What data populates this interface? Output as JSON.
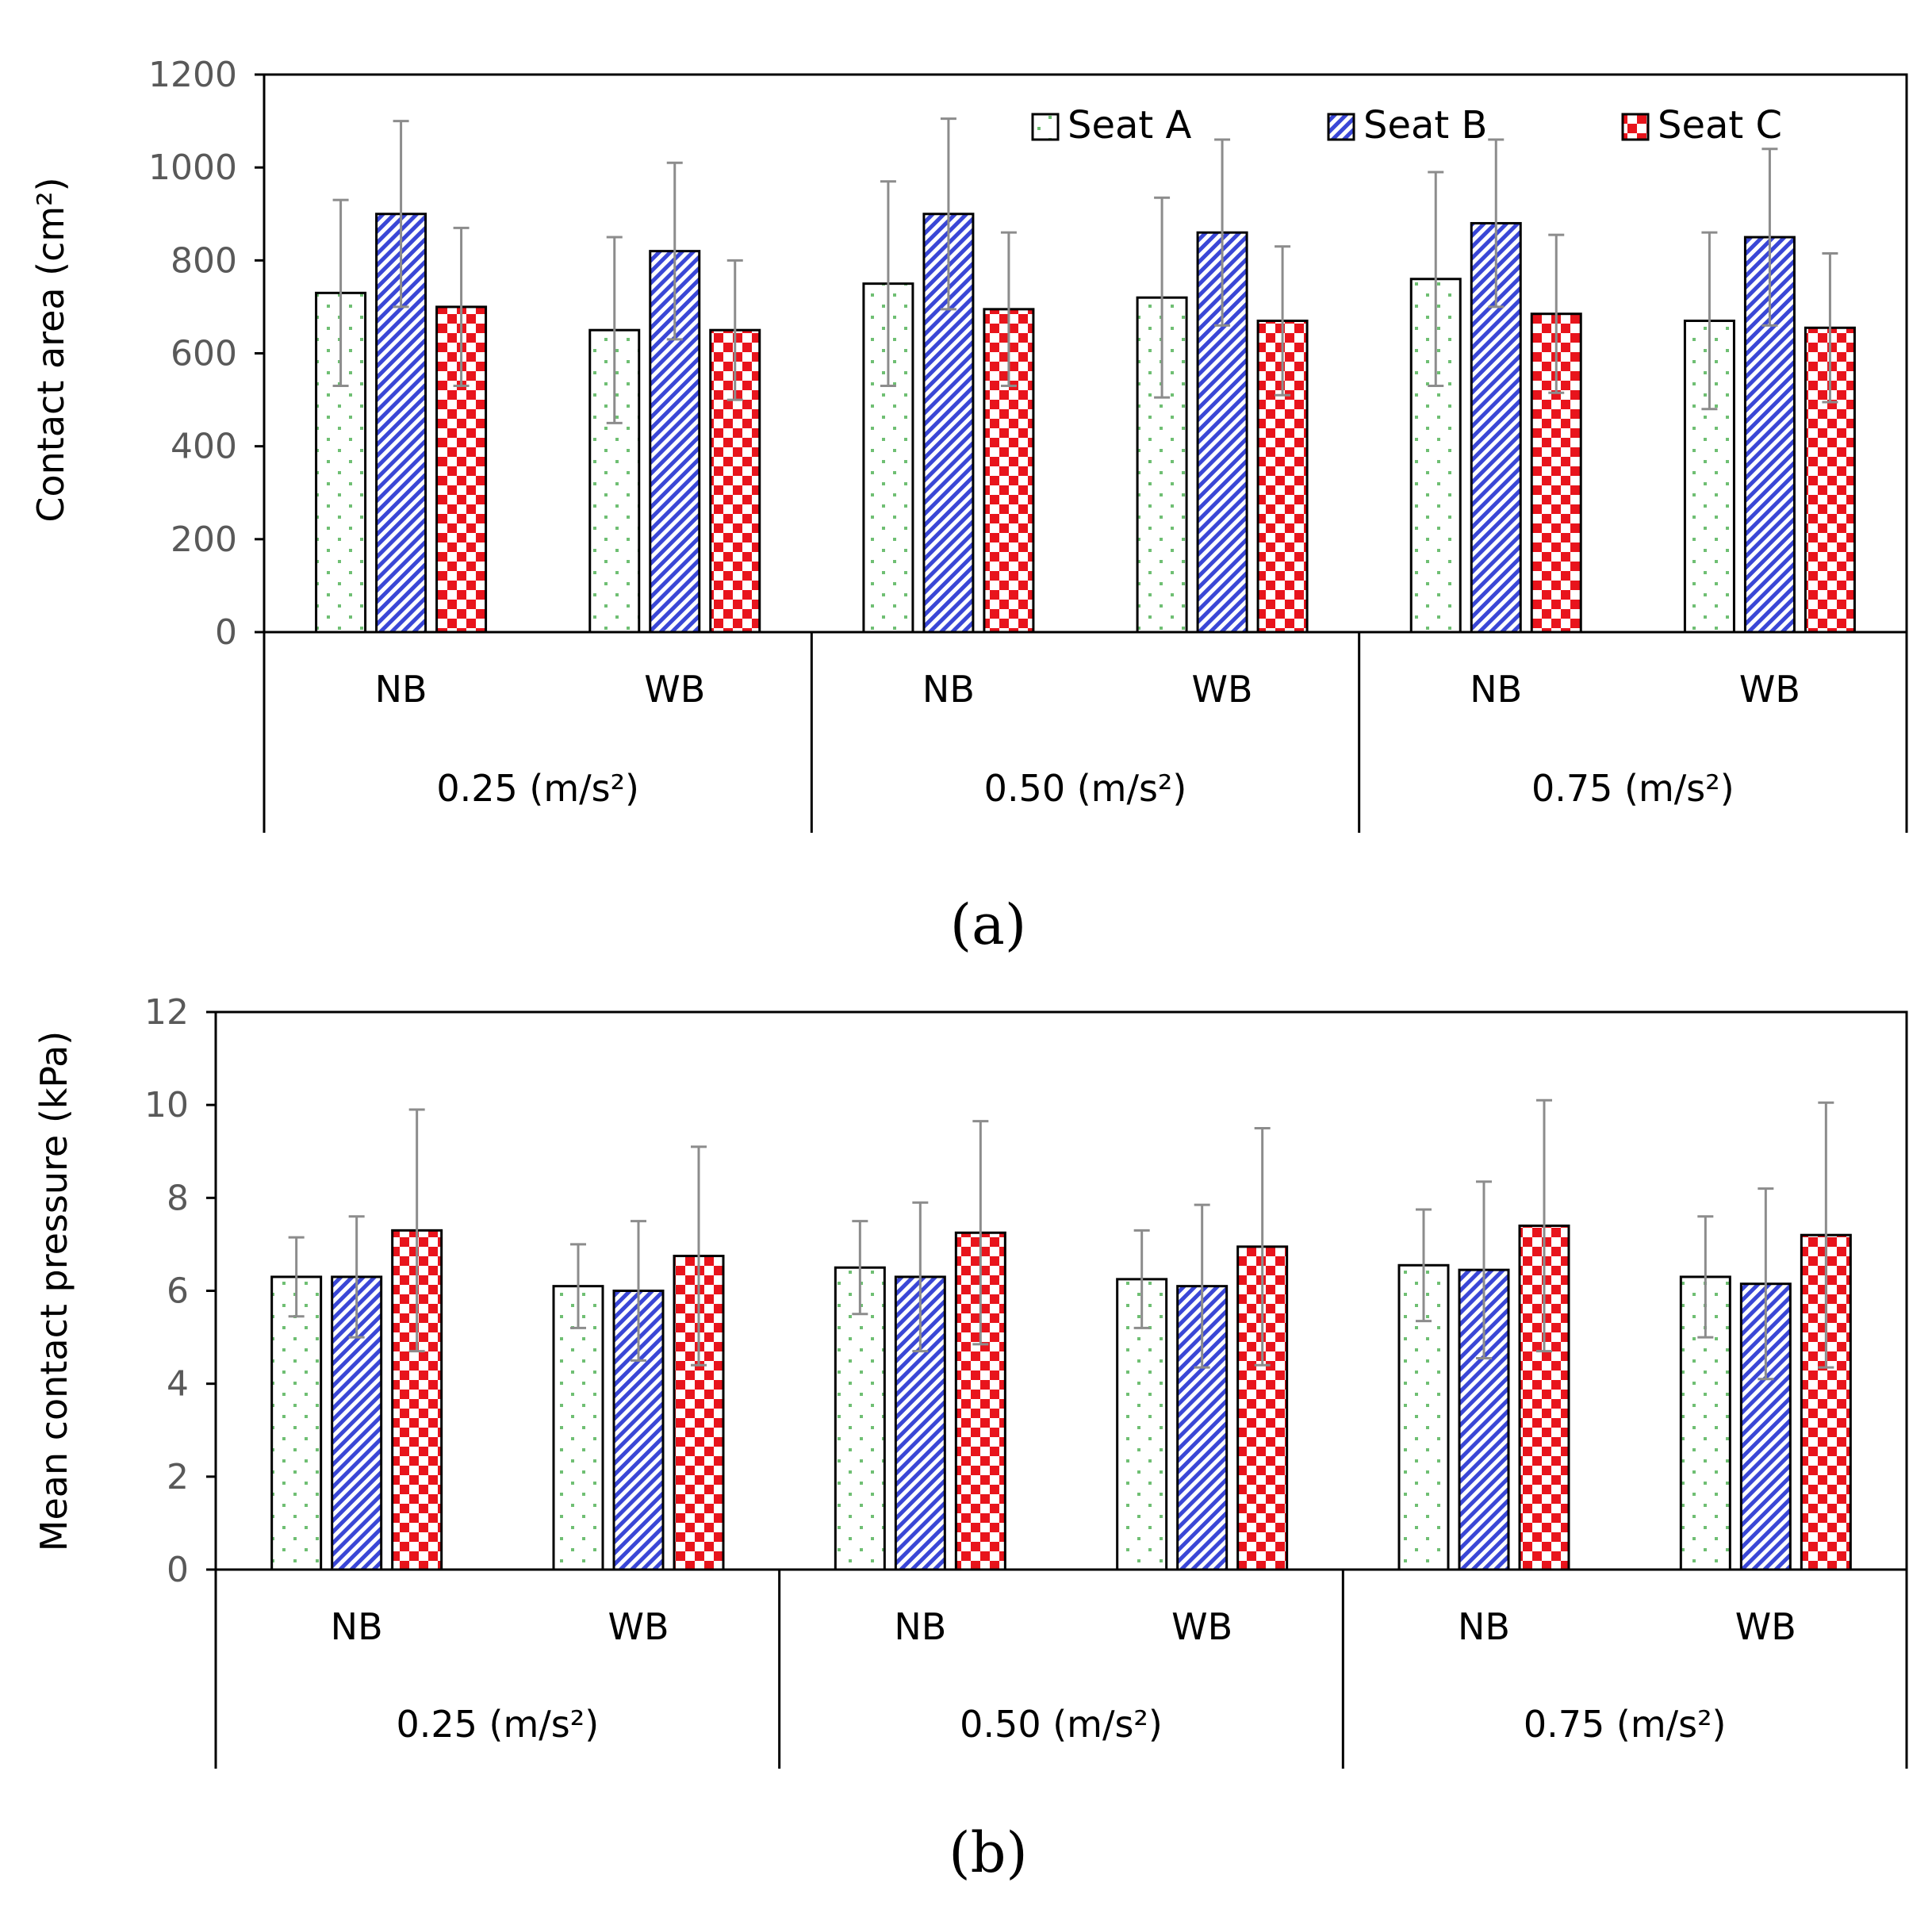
{
  "chart_data": [
    {
      "type": "bar",
      "panel_label": "(a)",
      "title": "",
      "ylabel": "Contact area (cm²)",
      "xlabel": "",
      "ylim": [
        0,
        1200
      ],
      "yticks": [
        "0",
        "200",
        "400",
        "600",
        "800",
        "1000",
        "1200"
      ],
      "categories": [
        "NB",
        "WB",
        "NB",
        "WB",
        "NB",
        "WB"
      ],
      "groups": [
        "0.25 (m/s²)",
        "0.50 (m/s²)",
        "0.75 (m/s²)"
      ],
      "legend_position": "top-right",
      "series": [
        {
          "name": "Seat A",
          "values": [
            730,
            650,
            750,
            720,
            760,
            670
          ],
          "err": [
            200,
            200,
            220,
            215,
            230,
            190
          ]
        },
        {
          "name": "Seat B",
          "values": [
            900,
            820,
            900,
            860,
            880,
            850
          ],
          "err": [
            200,
            190,
            205,
            200,
            180,
            190
          ]
        },
        {
          "name": "Seat C",
          "values": [
            700,
            650,
            695,
            670,
            685,
            655
          ],
          "err": [
            170,
            150,
            165,
            160,
            170,
            160
          ]
        }
      ]
    },
    {
      "type": "bar",
      "panel_label": "(b)",
      "title": "",
      "ylabel": "Mean contact pressure (kPa)",
      "xlabel": "",
      "ylim": [
        0,
        12
      ],
      "yticks": [
        "0",
        "2",
        "4",
        "6",
        "8",
        "10",
        "12"
      ],
      "categories": [
        "NB",
        "WB",
        "NB",
        "WB",
        "NB",
        "WB"
      ],
      "groups": [
        "0.25 (m/s²)",
        "0.50 (m/s²)",
        "0.75 (m/s²)"
      ],
      "series": [
        {
          "name": "Seat A",
          "values": [
            6.3,
            6.1,
            6.5,
            6.25,
            6.55,
            6.3
          ],
          "err": [
            0.85,
            0.9,
            1.0,
            1.05,
            1.2,
            1.3
          ]
        },
        {
          "name": "Seat B",
          "values": [
            6.3,
            6.0,
            6.3,
            6.1,
            6.45,
            6.15
          ],
          "err": [
            1.3,
            1.5,
            1.6,
            1.75,
            1.9,
            2.05
          ]
        },
        {
          "name": "Seat C",
          "values": [
            7.3,
            6.75,
            7.25,
            6.95,
            7.4,
            7.2
          ],
          "err": [
            2.6,
            2.35,
            2.4,
            2.55,
            2.7,
            2.85
          ]
        }
      ]
    }
  ]
}
